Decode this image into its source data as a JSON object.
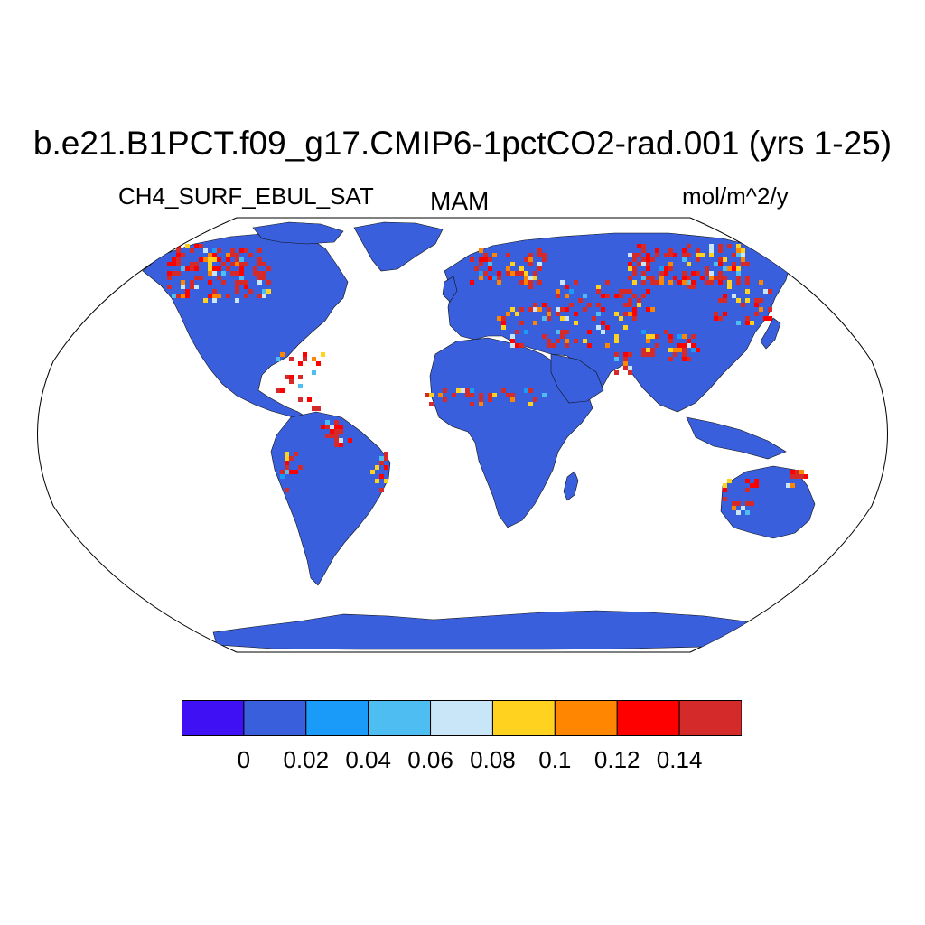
{
  "title": "b.e21.B1PCT.f09_g17.CMIP6-1pctCO2-rad.001 (yrs 1-25)",
  "variable": "CH4_SURF_EBUL_SAT",
  "season": "MAM",
  "units": "mol/m^2/y",
  "colorbar": {
    "levels": [
      "0",
      "0.02",
      "0.04",
      "0.06",
      "0.08",
      "0.1",
      "0.12",
      "0.14"
    ],
    "colors": [
      "#4010f5",
      "#3a5fdc",
      "#1a9bfa",
      "#4dbdf2",
      "#c8e6f8",
      "#ffd21f",
      "#ff8600",
      "#ff0000",
      "#d42a2a"
    ]
  },
  "map": {
    "projection": "Robinson",
    "land_color": "#3a5fdc",
    "ocean_color": "#ffffff",
    "hotspot_colors": [
      "#d42a2a",
      "#ff0000",
      "#ff8600",
      "#ffd21f",
      "#c8e6f8",
      "#4dbdf2",
      "#1a9bfa"
    ]
  }
}
